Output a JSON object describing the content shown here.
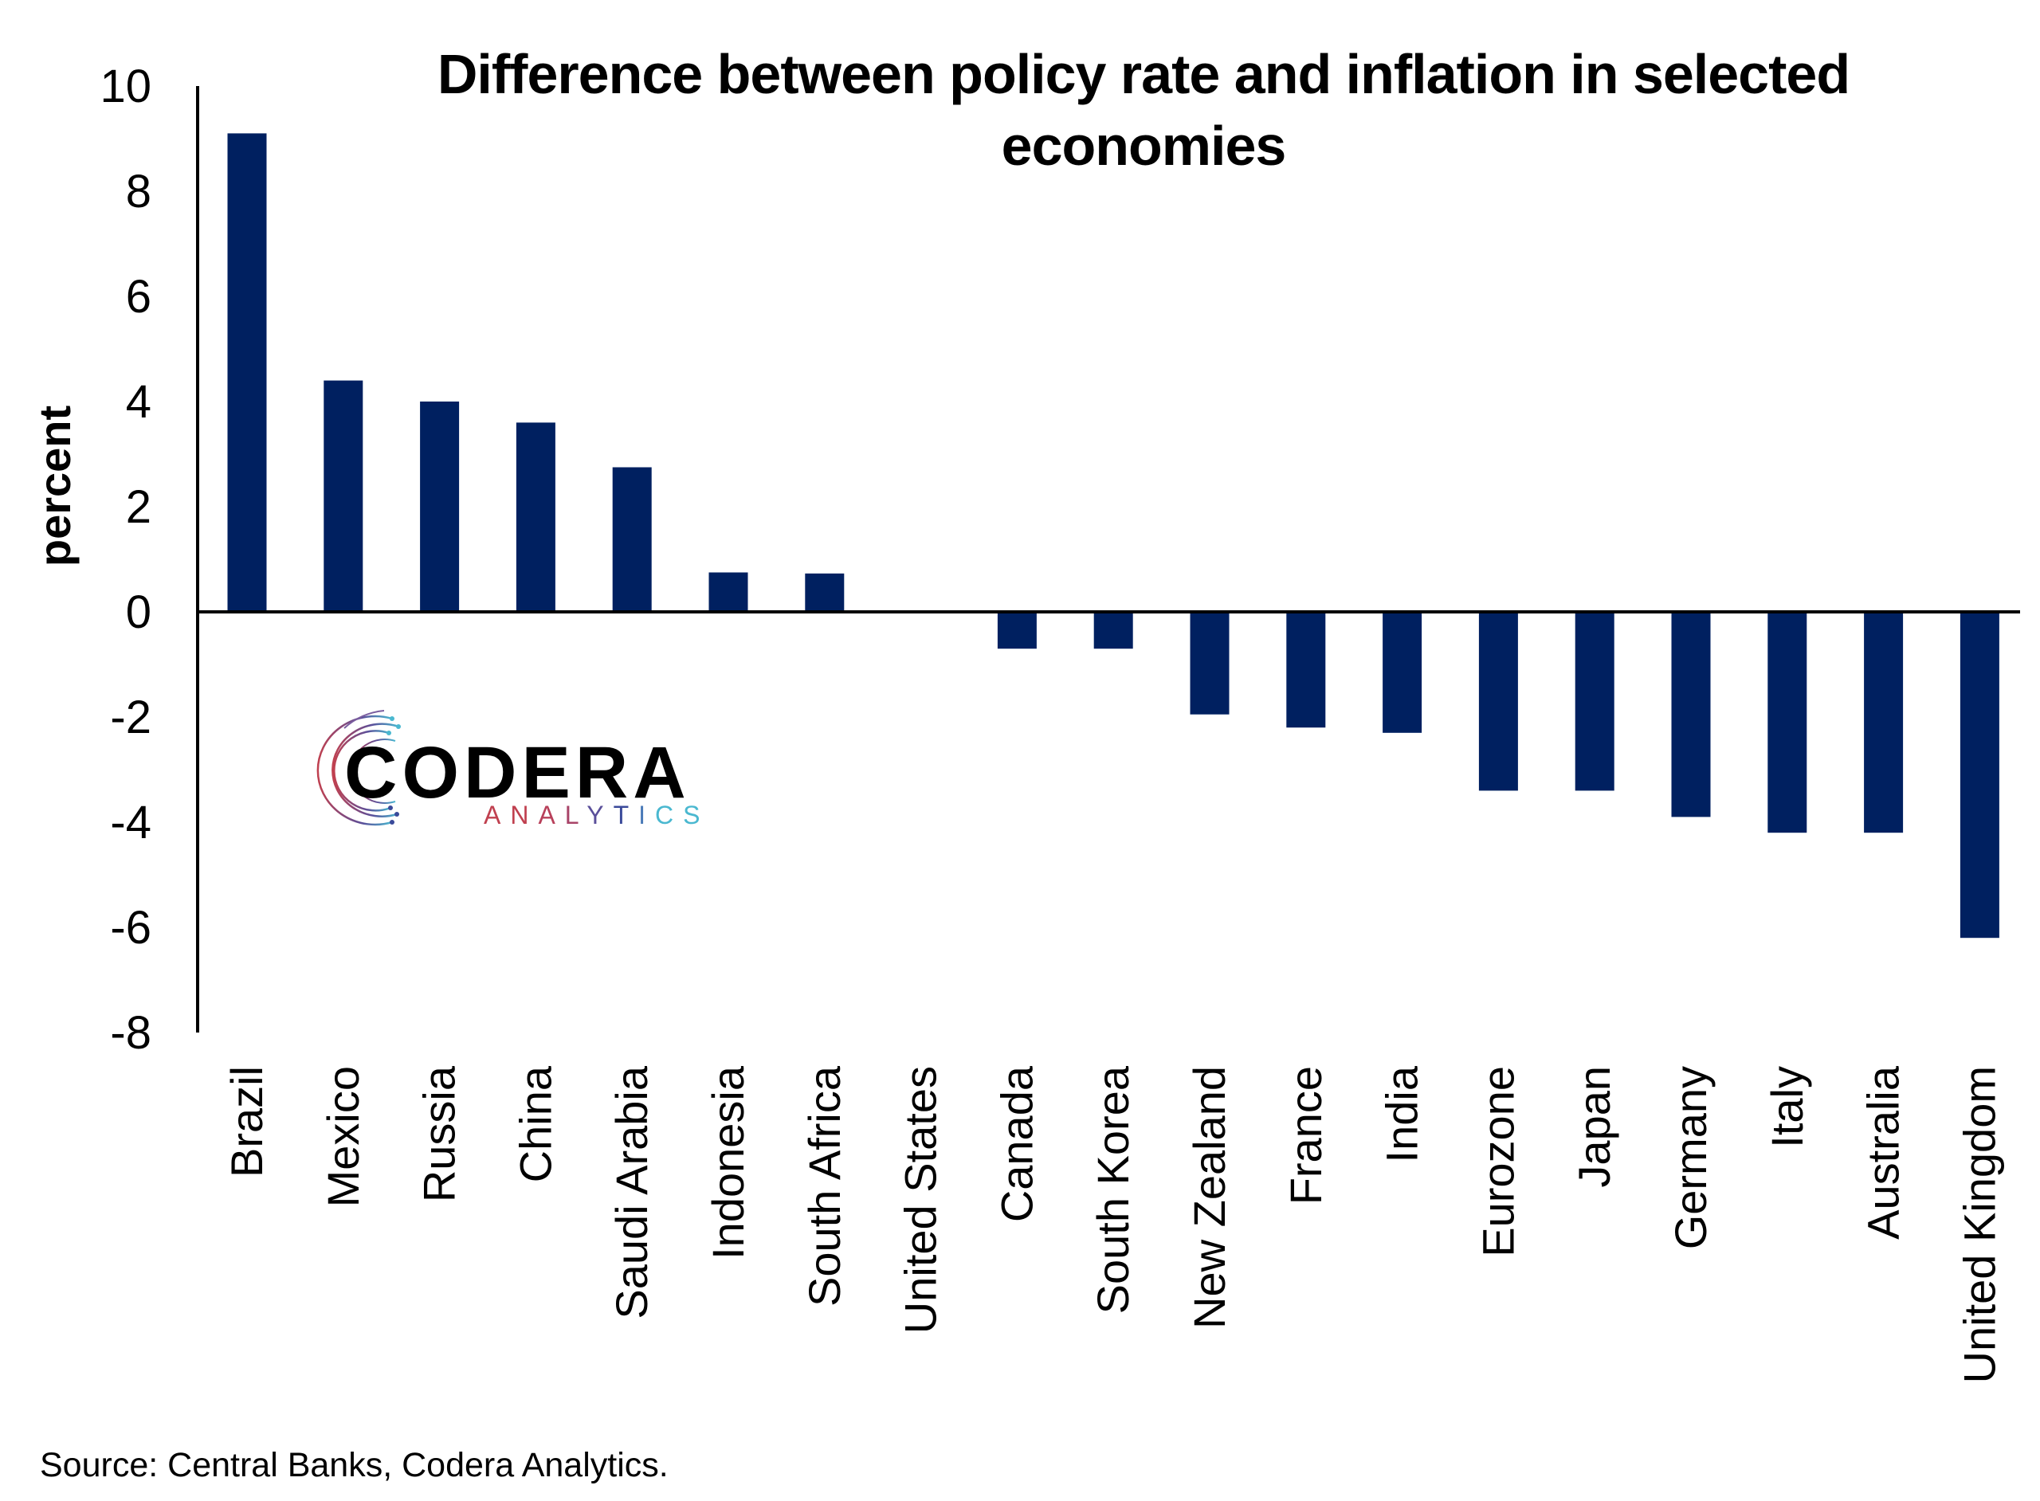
{
  "chart_data": {
    "type": "bar",
    "title": "Difference between policy rate and inflation in selected economies",
    "title_lines": [
      "Difference between policy rate and inflation in selected",
      "economies"
    ],
    "xlabel": "",
    "ylabel": "percent",
    "ylim": [
      -8,
      10
    ],
    "yticks": [
      10,
      8,
      6,
      4,
      2,
      0,
      -2,
      -4,
      -6,
      -8
    ],
    "grid": false,
    "legend": "none",
    "bar_color": "#002060",
    "categories": [
      "Brazil",
      "Mexico",
      "Russia",
      "China",
      "Saudi Arabia",
      "Indonesia",
      "South Africa",
      "United States",
      "Canada",
      "South Korea",
      "New Zealand",
      "France",
      "India",
      "Eurozone",
      "Japan",
      "Germany",
      "Italy",
      "Australia",
      "United Kingdom"
    ],
    "values": [
      9.1,
      4.4,
      4.0,
      3.6,
      2.75,
      0.75,
      0.73,
      0.0,
      -0.7,
      -0.7,
      -1.95,
      -2.2,
      -2.3,
      -3.4,
      -3.4,
      -3.9,
      -4.2,
      -4.2,
      -6.2
    ]
  },
  "logo": {
    "name": "CODERA",
    "sub": "ANALYTICS",
    "colors": [
      "#c0404f",
      "#3a4a9a",
      "#4ab8d0"
    ]
  },
  "footer": {
    "source": "Source: Central Banks, Codera Analytics."
  }
}
